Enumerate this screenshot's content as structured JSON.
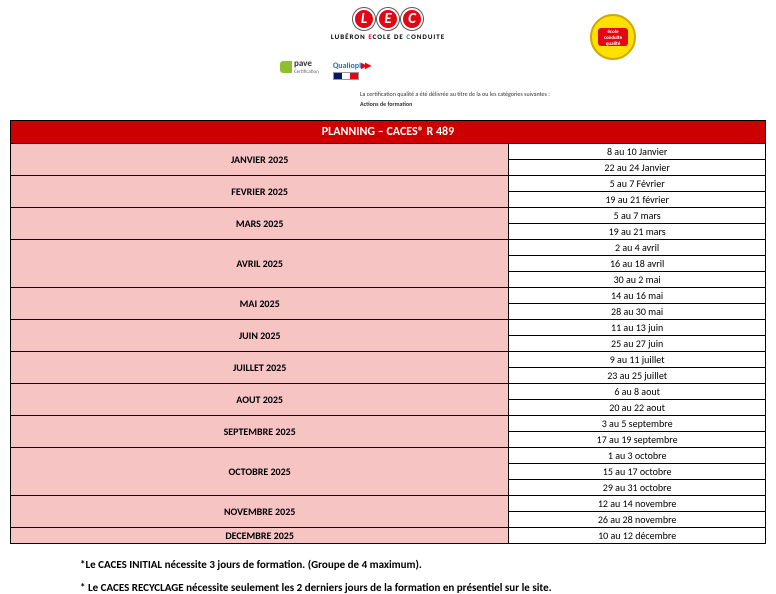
{
  "logo": {
    "letters": [
      "L",
      "E",
      "C"
    ],
    "subtitle_prefix": "LUBÉRON ",
    "subtitle_red": "E",
    "subtitle_mid": "COLE DE ",
    "subtitle_blue": "C",
    "subtitle_end": "ONDUITE"
  },
  "badge": {
    "line1": "école",
    "line2": "conduite",
    "line3": "qualité"
  },
  "cert": {
    "apave": "pave",
    "apave_sub": "Certification",
    "qualiopi": "Qualiopi",
    "line1": "La certification qualité a été délivrée au titre de la ou les catégories suivantes :",
    "line2": "Actions de formation"
  },
  "title": "PLANNING – CACES® R 489",
  "months": [
    {
      "name": "JANVIER 2025",
      "dates": [
        "8 au 10 Janvier",
        "22 au 24 Janvier"
      ]
    },
    {
      "name": "FEVRIER 2025",
      "dates": [
        "5 au 7 Février",
        "19 au 21 février"
      ]
    },
    {
      "name": "MARS 2025",
      "dates": [
        "5 au 7 mars",
        "19 au 21 mars"
      ]
    },
    {
      "name": "AVRIL 2025",
      "dates": [
        "2 au 4 avril",
        "16 au 18 avril",
        "30 au 2 mai"
      ]
    },
    {
      "name": "MAI 2025",
      "dates": [
        "14 au 16 mai",
        "28 au 30 mai"
      ]
    },
    {
      "name": "JUIN 2025",
      "dates": [
        "11 au 13 juin",
        "25 au 27 juin"
      ]
    },
    {
      "name": "JUILLET 2025",
      "dates": [
        "9 au 11 juillet",
        "23 au 25 juillet"
      ]
    },
    {
      "name": "AOUT 2025",
      "dates": [
        "6 au 8 aout",
        "20 au 22 aout"
      ]
    },
    {
      "name": "SEPTEMBRE 2025",
      "dates": [
        "3 au 5 septembre",
        "17 au 19 septembre"
      ]
    },
    {
      "name": "OCTOBRE 2025",
      "dates": [
        "1 au 3 octobre",
        "15 au 17 octobre",
        "29 au 31 octobre"
      ]
    },
    {
      "name": "NOVEMBRE 2025",
      "dates": [
        "12 au 14 novembre",
        "26 au 28 novembre"
      ]
    },
    {
      "name": "DECEMBRE 2025",
      "dates": [
        "10 au 12 décembre"
      ]
    }
  ],
  "footnotes": [
    "*Le CACES INITIAL nécessite 3 jours de formation. (Groupe de 4 maximum).",
    "* Le CACES RECYCLAGE nécessite seulement les 2 derniers jours de la formation en présentiel sur le site."
  ],
  "colors": {
    "title_bg": "#cc0000",
    "month_bg": "#f7c4c4",
    "border": "#000000"
  }
}
